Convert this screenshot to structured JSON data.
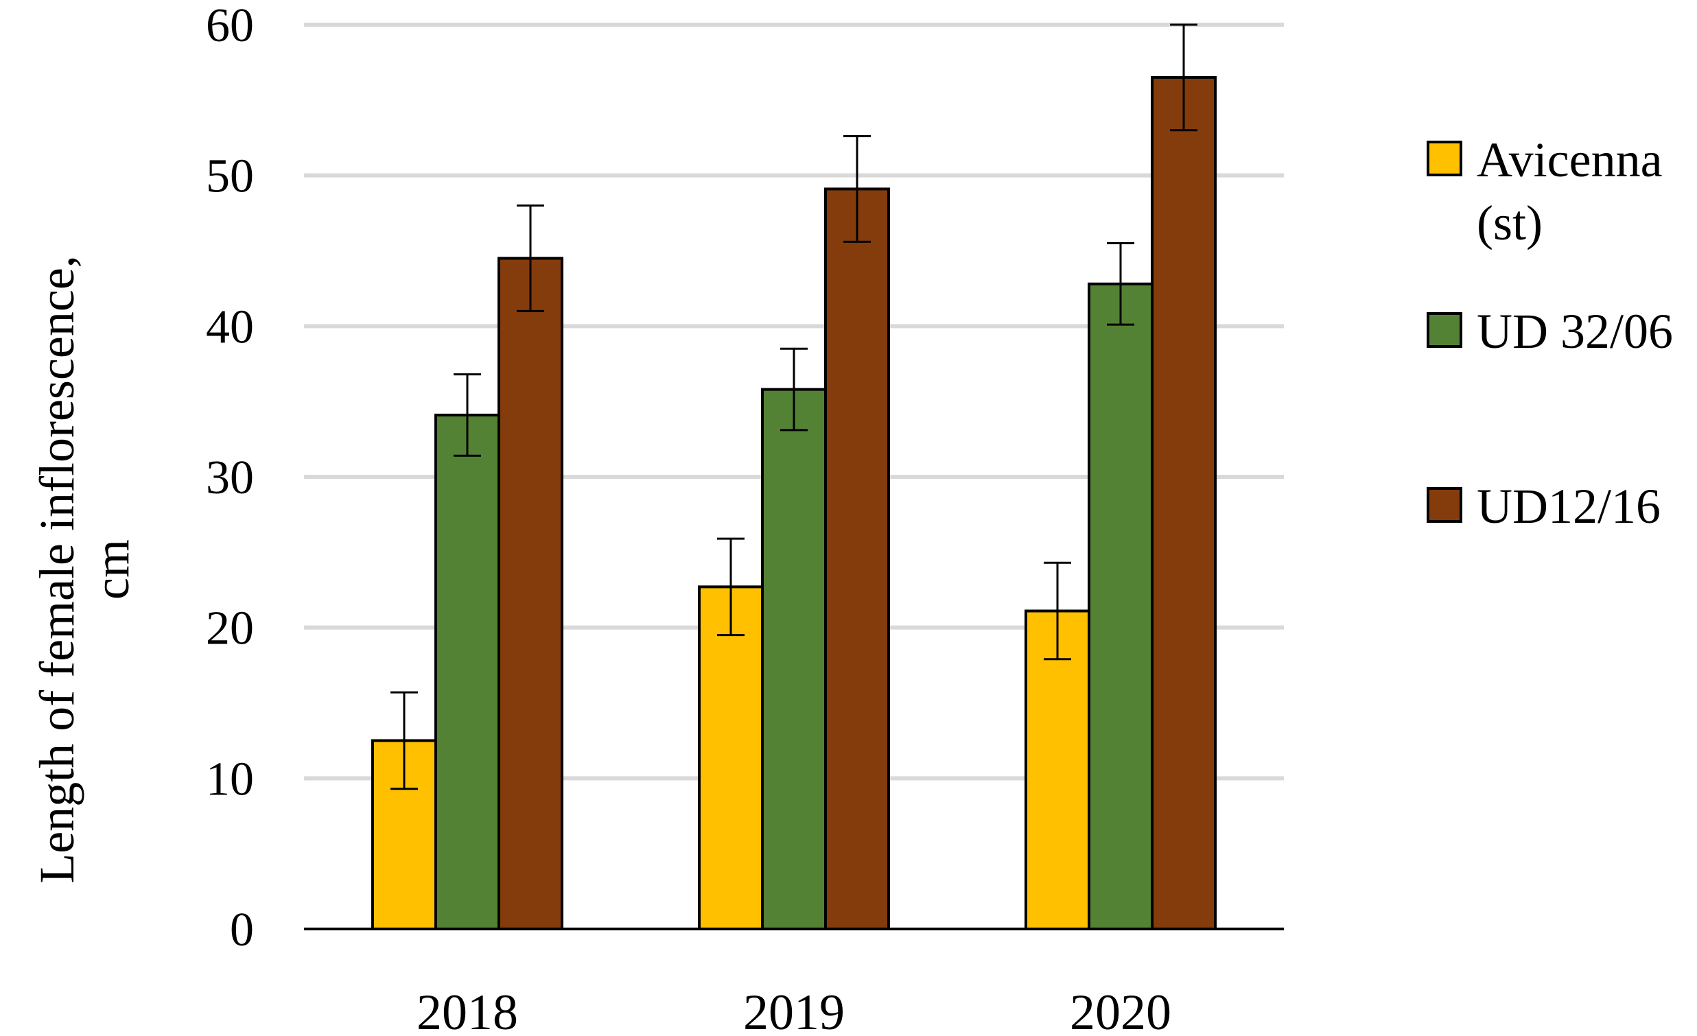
{
  "chart_data": {
    "type": "bar",
    "title": "",
    "xlabel": "",
    "ylabel_lines": [
      "Length of female inflorescence,",
      "cm"
    ],
    "categories": [
      "2018",
      "2019",
      "2020"
    ],
    "ylim": [
      0,
      60
    ],
    "yticks": [
      "0",
      "10",
      "20",
      "30",
      "40",
      "50",
      "60"
    ],
    "grid": true,
    "legend_position": "right",
    "series": [
      {
        "name_lines": [
          "Avicenna",
          "(st)"
        ],
        "color": "#FFC000",
        "values": [
          12.5,
          22.7,
          21.1
        ],
        "errors": [
          3.2,
          3.2,
          3.2
        ]
      },
      {
        "name_lines": [
          "UD 32/06"
        ],
        "color": "#548235",
        "values": [
          34.1,
          35.8,
          42.8
        ],
        "errors": [
          2.7,
          2.7,
          2.7
        ]
      },
      {
        "name_lines": [
          "UD12/16"
        ],
        "color": "#843C0C",
        "values": [
          44.5,
          49.1,
          56.5
        ],
        "errors": [
          3.5,
          3.5,
          3.5
        ]
      }
    ]
  }
}
